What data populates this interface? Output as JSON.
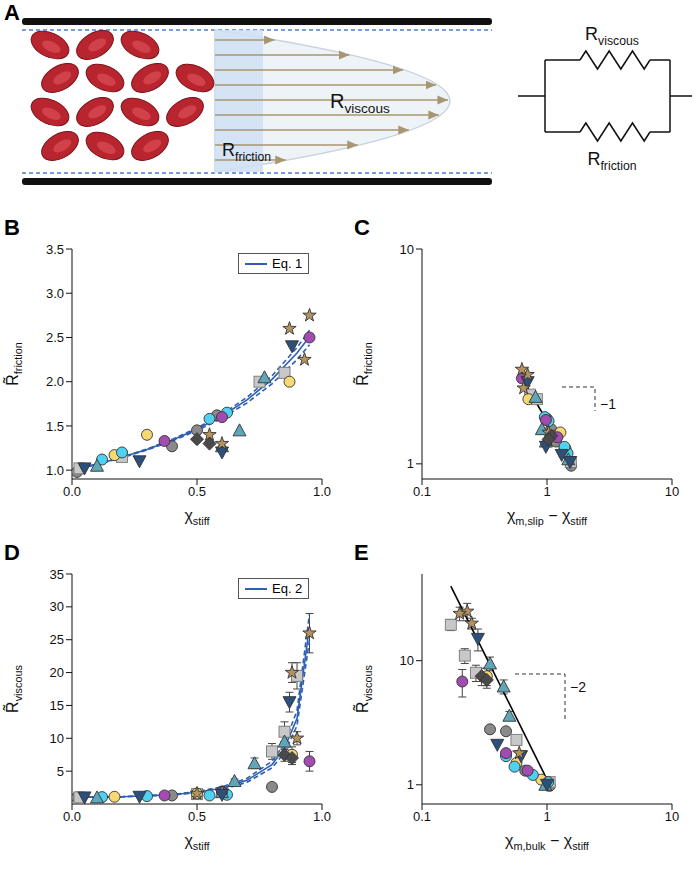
{
  "diagram": {
    "panel_label": "A",
    "channel_labels": [
      {
        "text": "R",
        "sub": "viscous"
      },
      {
        "text": "R",
        "sub": "friction"
      }
    ],
    "circuit_labels": [
      {
        "text": "R",
        "sub": "viscous"
      },
      {
        "text": "R",
        "sub": "friction"
      }
    ]
  },
  "chart_data": [
    {
      "panel_label": "B",
      "type": "scatter",
      "x_label": [
        {
          "text": "χ"
        },
        {
          "sub": "stiff"
        }
      ],
      "y_label": [
        {
          "text": "R̃"
        },
        {
          "sub": "friction"
        }
      ],
      "xlim": [
        0,
        1
      ],
      "xticks": [
        {
          "value": 0,
          "label": "0.0"
        },
        0.5,
        {
          "value": 1,
          "label": "1.0"
        }
      ],
      "ylim": [
        0.9,
        3.5
      ],
      "yticks": [
        {
          "value": 1,
          "label": "1.0"
        },
        1.5,
        {
          "value": 2,
          "label": "2.0"
        },
        2.5,
        {
          "value": 3,
          "label": "3.0"
        },
        3.5
      ],
      "grid": false,
      "legend": "upper right",
      "series": [
        {
          "name": "Eq. 1",
          "type": "line",
          "line_style": "solid",
          "color": "#2f5fb3",
          "x": [
            0,
            0.1,
            0.2,
            0.3,
            0.4,
            0.5,
            0.6,
            0.7,
            0.8,
            0.9,
            0.95
          ],
          "values": [
            1.0,
            1.068,
            1.145,
            1.234,
            1.339,
            1.463,
            1.612,
            1.795,
            2.026,
            2.324,
            2.508
          ]
        },
        {
          "type": "line",
          "line_style": "dashed",
          "color": "#2f5fb3",
          "x": [
            0,
            0.1,
            0.2,
            0.3,
            0.4,
            0.5,
            0.6,
            0.7,
            0.8,
            0.9,
            0.95
          ],
          "values": [
            1.0,
            1.069,
            1.148,
            1.24,
            1.348,
            1.476,
            1.632,
            1.824,
            2.067,
            2.385,
            2.583
          ]
        },
        {
          "type": "line",
          "line_style": "dashed",
          "color": "#2f5fb3",
          "x": [
            0,
            0.1,
            0.2,
            0.3,
            0.4,
            0.5,
            0.6,
            0.7,
            0.8,
            0.9,
            0.95
          ],
          "values": [
            1.0,
            1.066,
            1.141,
            1.227,
            1.329,
            1.446,
            1.588,
            1.761,
            1.976,
            2.25,
            2.418
          ]
        },
        {
          "color": "#8a8a8a",
          "marker": "circle",
          "x": [
            0.02,
            0.4,
            0.5,
            0.58
          ],
          "values": [
            0.98,
            1.27,
            1.45,
            1.62
          ]
        },
        {
          "color": "#c8c8c8",
          "marker": "square",
          "x": [
            0.03,
            0.2,
            0.75,
            0.85
          ],
          "values": [
            1.02,
            1.15,
            2.0,
            2.1
          ]
        },
        {
          "color": "#f7d873",
          "marker": "circle",
          "x": [
            0.17,
            0.3,
            0.87
          ],
          "values": [
            1.17,
            1.4,
            2.0
          ]
        },
        {
          "color": "#4fd2f2",
          "marker": "circle",
          "x": [
            0.12,
            0.2,
            0.55,
            0.62
          ],
          "values": [
            1.12,
            1.2,
            1.58,
            1.65
          ]
        },
        {
          "color": "#a24bb0",
          "marker": "circle",
          "x": [
            0.37,
            0.6,
            0.95
          ],
          "values": [
            1.33,
            1.6,
            2.5
          ]
        },
        {
          "color": "#5fa6b8",
          "marker": "triangle",
          "x": [
            0.1,
            0.6,
            0.67,
            0.77
          ],
          "values": [
            1.05,
            1.27,
            1.45,
            2.05
          ]
        },
        {
          "color": "#2c4f7c",
          "marker": "triangle_down",
          "x": [
            0.05,
            0.27,
            0.6,
            0.88
          ],
          "values": [
            1.02,
            1.1,
            1.2,
            2.4
          ]
        },
        {
          "color": "#b4935e",
          "marker": "star",
          "x": [
            0.55,
            0.6,
            0.87,
            0.95,
            0.93
          ],
          "values": [
            1.4,
            1.3,
            2.6,
            2.75,
            2.25
          ]
        },
        {
          "color": "#4a4a4a",
          "marker": "diamond",
          "x": [
            0.5,
            0.55
          ],
          "values": [
            1.35,
            1.3
          ]
        }
      ]
    },
    {
      "panel_label": "C",
      "type": "scatter",
      "x_label": [
        {
          "text": "χ"
        },
        {
          "sub": "m,slip"
        },
        {
          "text": " − χ"
        },
        {
          "sub": "stiff"
        }
      ],
      "y_label": [
        {
          "text": "R̃"
        },
        {
          "sub": "friction"
        }
      ],
      "log": true,
      "xlim": [
        0.1,
        10
      ],
      "xticks": [
        0.1,
        1,
        10
      ],
      "ylim": [
        0.85,
        10
      ],
      "yticks": [
        1,
        10
      ],
      "grid": false,
      "annotations": [
        "−1"
      ],
      "series": [
        {
          "type": "line",
          "line_style": "solid",
          "color": "#000000",
          "x": [
            0.62,
            1.58
          ],
          "values": [
            2.55,
            1.0
          ]
        },
        {
          "color": "#8a8a8a",
          "marker": "circle",
          "x": [
            1.56,
            1.18,
            1.08,
            1.0
          ],
          "values": [
            0.98,
            1.27,
            1.45,
            1.62
          ]
        },
        {
          "color": "#c8c8c8",
          "marker": "square",
          "x": [
            1.55,
            1.38,
            0.83,
            0.73
          ],
          "values": [
            1.02,
            1.15,
            2.0,
            2.1
          ]
        },
        {
          "color": "#f7d873",
          "marker": "circle",
          "x": [
            1.41,
            1.28,
            0.71
          ],
          "values": [
            1.17,
            1.4,
            2.0
          ]
        },
        {
          "color": "#4fd2f2",
          "marker": "circle",
          "x": [
            1.46,
            1.38,
            1.03,
            0.96
          ],
          "values": [
            1.12,
            1.2,
            1.58,
            1.65
          ]
        },
        {
          "color": "#a24bb0",
          "marker": "circle",
          "x": [
            1.21,
            0.98,
            0.63
          ],
          "values": [
            1.33,
            1.6,
            2.5
          ]
        },
        {
          "color": "#5fa6b8",
          "marker": "triangle",
          "x": [
            1.48,
            0.98,
            0.91,
            0.81
          ],
          "values": [
            1.05,
            1.27,
            1.45,
            2.05
          ]
        },
        {
          "color": "#2c4f7c",
          "marker": "triangle_down",
          "x": [
            1.53,
            1.31,
            0.98,
            0.7
          ],
          "values": [
            1.02,
            1.1,
            1.2,
            2.4
          ]
        },
        {
          "color": "#b4935e",
          "marker": "star",
          "x": [
            1.03,
            0.7,
            0.63,
            0.65
          ],
          "values": [
            1.4,
            2.6,
            2.75,
            2.25
          ]
        },
        {
          "color": "#4a4a4a",
          "marker": "diamond",
          "x": [
            1.08,
            1.03
          ],
          "values": [
            1.35,
            1.3
          ]
        }
      ]
    },
    {
      "panel_label": "D",
      "type": "scatter",
      "x_label": [
        {
          "text": "χ"
        },
        {
          "sub": "stiff"
        }
      ],
      "y_label": [
        {
          "text": "R̃"
        },
        {
          "sub": "viscous"
        }
      ],
      "xlim": [
        0,
        1
      ],
      "xticks": [
        {
          "value": 0,
          "label": "0.0"
        },
        0.5,
        {
          "value": 1,
          "label": "1.0"
        }
      ],
      "ylim": [
        0,
        35
      ],
      "yticks": [
        5,
        10,
        15,
        20,
        25,
        30,
        35
      ],
      "grid": false,
      "legend": "upper right",
      "series": [
        {
          "name": "Eq. 2",
          "type": "line",
          "line_style": "solid",
          "color": "#2f5fb3",
          "x": [
            0,
            0.2,
            0.4,
            0.5,
            0.6,
            0.7,
            0.8,
            0.85,
            0.9,
            0.95
          ],
          "values": [
            1.0,
            1.1,
            1.4,
            1.8,
            2.4,
            3.6,
            6.0,
            8.5,
            13.0,
            27.0
          ]
        },
        {
          "type": "line",
          "line_style": "dashed",
          "color": "#2f5fb3",
          "x": [
            0,
            0.2,
            0.4,
            0.5,
            0.6,
            0.7,
            0.8,
            0.85,
            0.9,
            0.95
          ],
          "values": [
            1.0,
            1.1,
            1.45,
            1.9,
            2.6,
            3.9,
            6.5,
            9.2,
            14.2,
            29.0
          ]
        },
        {
          "type": "line",
          "line_style": "dashed",
          "color": "#2f5fb3",
          "x": [
            0,
            0.2,
            0.4,
            0.5,
            0.6,
            0.7,
            0.8,
            0.85,
            0.9,
            0.95
          ],
          "values": [
            1.0,
            1.1,
            1.35,
            1.7,
            2.2,
            3.3,
            5.5,
            7.8,
            11.9,
            25.0
          ]
        },
        {
          "color": "#8a8a8a",
          "marker": "circle",
          "x": [
            0.02,
            0.4,
            0.6,
            0.8
          ],
          "values": [
            1.0,
            1.3,
            1.9,
            2.6
          ]
        },
        {
          "color": "#c8c8c8",
          "marker": "square",
          "x": [
            0.03,
            0.5,
            0.8,
            0.85,
            0.9
          ],
          "values": [
            1.0,
            1.5,
            8.0,
            11.0,
            19.5
          ],
          "errors": [
            0,
            0,
            1.2,
            1.5,
            2.0
          ]
        },
        {
          "color": "#f7d873",
          "marker": "circle",
          "x": [
            0.17,
            0.5,
            0.88
          ],
          "values": [
            1.1,
            1.6,
            7.5
          ],
          "errors": [
            0,
            0,
            1.2
          ]
        },
        {
          "color": "#4fd2f2",
          "marker": "circle",
          "x": [
            0.12,
            0.3,
            0.55,
            0.62
          ],
          "values": [
            1.05,
            1.2,
            1.3,
            1.4
          ]
        },
        {
          "color": "#a24bb0",
          "marker": "circle",
          "x": [
            0.37,
            0.6,
            0.95
          ],
          "values": [
            1.3,
            1.8,
            6.5
          ],
          "errors": [
            0,
            0,
            1.5
          ]
        },
        {
          "color": "#5fa6b8",
          "marker": "triangle",
          "x": [
            0.1,
            0.6,
            0.65,
            0.73,
            0.85
          ],
          "values": [
            1.0,
            1.8,
            3.5,
            6.2,
            9.5
          ],
          "errors": [
            0,
            0,
            0.3,
            0.8,
            1.2
          ]
        },
        {
          "color": "#2c4f7c",
          "marker": "triangle_down",
          "x": [
            0.05,
            0.27,
            0.6,
            0.87
          ],
          "values": [
            1.0,
            1.1,
            1.4,
            15.5
          ],
          "errors": [
            0,
            0,
            0,
            1.5
          ]
        },
        {
          "color": "#b4935e",
          "marker": "star",
          "x": [
            0.5,
            0.88,
            0.9,
            0.95
          ],
          "values": [
            1.6,
            20.0,
            10.0,
            26.0
          ],
          "errors": [
            0,
            1.5,
            1.0,
            3.0
          ]
        },
        {
          "color": "#4a4a4a",
          "marker": "diamond",
          "x": [
            0.85,
            0.88
          ],
          "values": [
            7.5,
            7.0
          ],
          "errors": [
            1.0,
            1.0
          ]
        }
      ]
    },
    {
      "panel_label": "E",
      "type": "scatter",
      "x_label": [
        {
          "text": "χ"
        },
        {
          "sub": "m,bulk"
        },
        {
          "text": " − χ"
        },
        {
          "sub": "stiff"
        }
      ],
      "y_label": [
        {
          "text": "R̃"
        },
        {
          "sub": "viscous"
        }
      ],
      "log": true,
      "xlim": [
        0.1,
        10
      ],
      "xticks": [
        0.1,
        1,
        10
      ],
      "ylim": [
        0.7,
        50
      ],
      "yticks": [
        1,
        10
      ],
      "grid": false,
      "annotations": [
        "−2"
      ],
      "series": [
        {
          "type": "line",
          "line_style": "solid",
          "color": "#000000",
          "x": [
            0.17,
            1.05
          ],
          "values": [
            40.0,
            1.0
          ]
        },
        {
          "color": "#8a8a8a",
          "marker": "circle",
          "x": [
            1.05,
            0.67,
            0.47,
            0.35
          ],
          "values": [
            0.98,
            1.3,
            2.7,
            2.8
          ]
        },
        {
          "color": "#c8c8c8",
          "marker": "square",
          "x": [
            1.05,
            0.57,
            0.27,
            0.22,
            0.17
          ],
          "values": [
            1.05,
            2.3,
            8.0,
            11.0,
            19.5
          ],
          "errors": [
            0,
            0,
            1.2,
            1.5,
            2.0
          ]
        },
        {
          "color": "#f7d873",
          "marker": "circle",
          "x": [
            0.9,
            0.57,
            0.33
          ],
          "values": [
            1.1,
            1.5,
            7.5
          ],
          "errors": [
            0,
            0,
            1.2
          ]
        },
        {
          "color": "#4fd2f2",
          "marker": "circle",
          "x": [
            1.02,
            0.77,
            0.55,
            0.47
          ],
          "values": [
            1.05,
            1.2,
            1.4,
            1.7
          ]
        },
        {
          "color": "#a24bb0",
          "marker": "circle",
          "x": [
            0.7,
            0.47,
            0.21
          ],
          "values": [
            1.3,
            1.8,
            6.8
          ],
          "errors": [
            0,
            0,
            1.7
          ]
        },
        {
          "color": "#5fa6b8",
          "marker": "triangle",
          "x": [
            0.97,
            0.5,
            0.45,
            0.35
          ],
          "values": [
            1.0,
            3.6,
            6.2,
            9.5
          ],
          "errors": [
            0,
            0.3,
            0.8,
            1.2
          ]
        },
        {
          "color": "#2c4f7c",
          "marker": "triangle_down",
          "x": [
            1.0,
            0.62,
            0.4,
            0.28
          ],
          "values": [
            1.0,
            1.7,
            2.1,
            15.0
          ],
          "errors": [
            0,
            0,
            0,
            3.0
          ]
        },
        {
          "color": "#b4935e",
          "marker": "star",
          "x": [
            0.6,
            0.25,
            0.23,
            0.2
          ],
          "values": [
            1.8,
            20.0,
            25.0,
            24.0
          ],
          "errors": [
            0,
            2.0,
            4.0,
            3.0
          ]
        },
        {
          "color": "#4a4a4a",
          "marker": "diamond",
          "x": [
            0.3,
            0.33
          ],
          "values": [
            7.5,
            7.0
          ],
          "errors": [
            1.2,
            1.0
          ]
        }
      ]
    }
  ]
}
